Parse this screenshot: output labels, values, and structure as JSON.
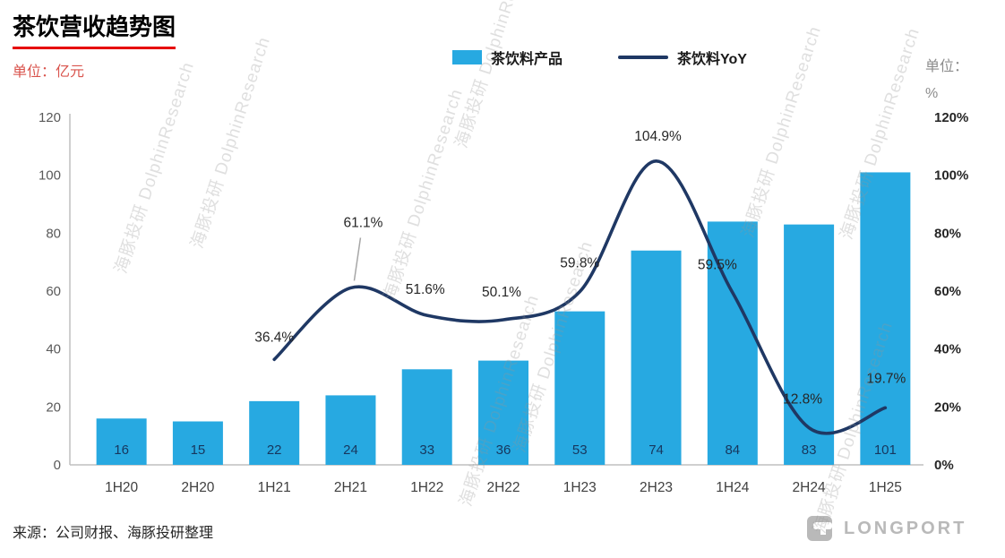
{
  "title": "茶饮营收趋势图",
  "unit_left": "单位：亿元",
  "unit_right_line1": "单位：",
  "unit_right_line2": "%",
  "legend": {
    "bar_label": "茶饮料产品",
    "line_label": "茶饮料YoY"
  },
  "source": "来源：公司财报、海豚投研整理",
  "watermark": "海豚投研 DolphinResearch",
  "logo_text": "LONGPORT",
  "colors": {
    "bar": "#27a9e1",
    "line": "#1f3864",
    "bar_label": "#17375e",
    "axis": "#bfbfbf",
    "tick_left": "#595959",
    "tick_right": "#262626",
    "x_label": "#404040",
    "line_label": "#262626",
    "leader": "#a6a6a6",
    "title_underline": "#e60000"
  },
  "chart_data": {
    "type": "bar",
    "subtype": "bar+line combo",
    "title": "茶饮营收趋势图",
    "categories": [
      "1H20",
      "2H20",
      "1H21",
      "2H21",
      "1H22",
      "2H22",
      "1H23",
      "2H23",
      "1H24",
      "2H24",
      "1H25"
    ],
    "series": [
      {
        "name": "茶饮料产品",
        "type": "bar",
        "axis": "left",
        "unit": "亿元",
        "values": [
          16,
          15,
          22,
          24,
          33,
          36,
          53,
          74,
          84,
          83,
          101
        ]
      },
      {
        "name": "茶饮料YoY",
        "type": "line",
        "axis": "right",
        "unit": "%",
        "values": [
          null,
          null,
          36.4,
          61.1,
          51.6,
          50.1,
          59.8,
          104.9,
          59.5,
          12.8,
          19.7
        ],
        "labels": [
          "",
          "",
          "36.4%",
          "61.1%",
          "51.6%",
          "50.1%",
          "59.8%",
          "104.9%",
          "59.5%",
          "12.8%",
          "19.7%"
        ]
      }
    ],
    "left_axis": {
      "title": "单位：亿元",
      "min": 0,
      "max": 120,
      "step": 20,
      "ticks": [
        "0",
        "20",
        "40",
        "60",
        "80",
        "100",
        "120"
      ]
    },
    "right_axis": {
      "title": "单位：%",
      "min": 0,
      "max": 120,
      "step": 20,
      "ticks": [
        "0%",
        "20%",
        "40%",
        "60%",
        "80%",
        "100%",
        "120%"
      ]
    },
    "grid": false,
    "legend_position": "top"
  }
}
